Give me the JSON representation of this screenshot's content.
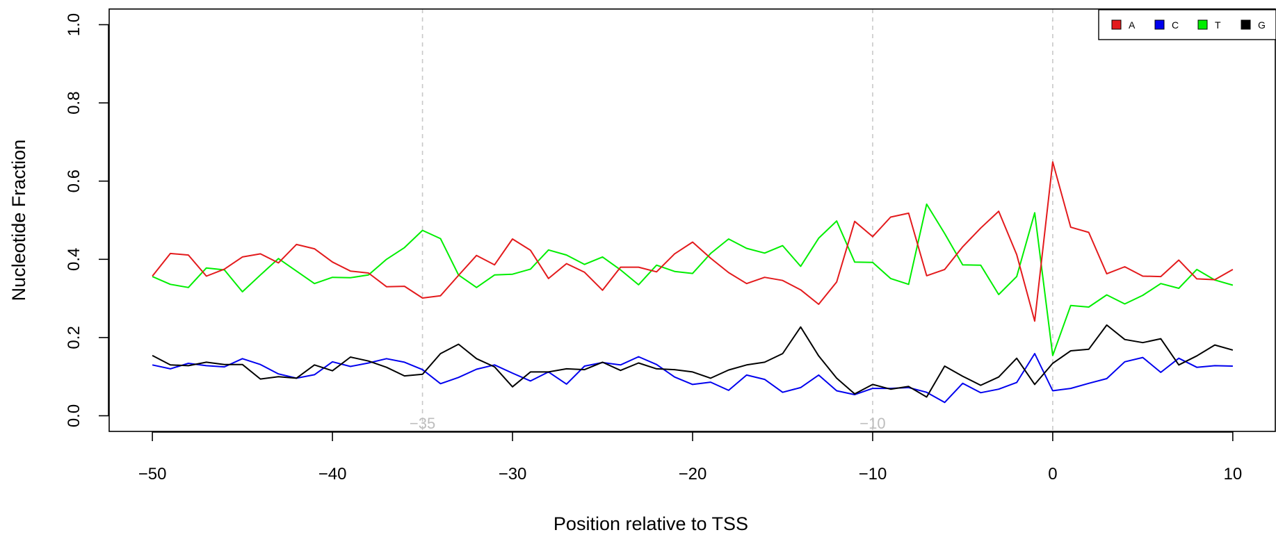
{
  "chart_data": {
    "type": "line",
    "title": "",
    "xlabel": "Position relative to TSS",
    "ylabel": "Nucleotide Fraction",
    "xlim": [
      -52.4,
      12.4
    ],
    "ylim": [
      -0.04,
      1.04
    ],
    "x_ticks": [
      -50,
      -40,
      -30,
      -20,
      -10,
      0,
      10
    ],
    "x_tick_labels": [
      "−50",
      "−40",
      "−30",
      "−20",
      "−10",
      "0",
      "10"
    ],
    "y_ticks": [
      0.0,
      0.2,
      0.4,
      0.6,
      0.8,
      1.0
    ],
    "y_tick_labels": [
      "0.0",
      "0.2",
      "0.4",
      "0.6",
      "0.8",
      "1.0"
    ],
    "reference_lines": [
      {
        "x": -35,
        "label": "−35",
        "color": "#c8c8c8"
      },
      {
        "x": -10,
        "label": "−10",
        "color": "#c8c8c8"
      },
      {
        "x": 0,
        "label": "",
        "color": "#c8c8c8"
      }
    ],
    "legend_position": "top-right",
    "x": [
      -50,
      -49,
      -48,
      -47,
      -46,
      -45,
      -44,
      -43,
      -42,
      -41,
      -40,
      -39,
      -38,
      -37,
      -36,
      -35,
      -34,
      -33,
      -32,
      -31,
      -30,
      -29,
      -28,
      -27,
      -26,
      -25,
      -24,
      -23,
      -22,
      -21,
      -20,
      -19,
      -18,
      -17,
      -16,
      -15,
      -14,
      -13,
      -12,
      -11,
      -10,
      -9,
      -8,
      -7,
      -6,
      -5,
      -4,
      -3,
      -2,
      -1,
      0,
      1,
      2,
      3,
      4,
      5,
      6,
      7,
      8,
      9,
      10
    ],
    "series": [
      {
        "name": "A",
        "color": "#e31a1c",
        "values": [
          0.357,
          0.415,
          0.411,
          0.357,
          0.375,
          0.406,
          0.414,
          0.391,
          0.438,
          0.427,
          0.393,
          0.37,
          0.365,
          0.33,
          0.331,
          0.301,
          0.307,
          0.359,
          0.41,
          0.386,
          0.452,
          0.423,
          0.351,
          0.389,
          0.367,
          0.321,
          0.38,
          0.38,
          0.368,
          0.414,
          0.444,
          0.403,
          0.366,
          0.338,
          0.354,
          0.346,
          0.322,
          0.285,
          0.342,
          0.497,
          0.458,
          0.508,
          0.518,
          0.358,
          0.374,
          0.432,
          0.48,
          0.523,
          0.412,
          0.242,
          0.649,
          0.482,
          0.469,
          0.363,
          0.381,
          0.357,
          0.356,
          0.398,
          0.35,
          0.348,
          0.374
        ]
      },
      {
        "name": "C",
        "color": "#0000ee",
        "values": [
          0.13,
          0.12,
          0.134,
          0.128,
          0.125,
          0.146,
          0.131,
          0.107,
          0.096,
          0.105,
          0.138,
          0.126,
          0.135,
          0.146,
          0.137,
          0.118,
          0.082,
          0.098,
          0.119,
          0.13,
          0.109,
          0.089,
          0.112,
          0.081,
          0.127,
          0.136,
          0.13,
          0.151,
          0.131,
          0.099,
          0.08,
          0.086,
          0.065,
          0.104,
          0.093,
          0.06,
          0.072,
          0.104,
          0.064,
          0.054,
          0.07,
          0.07,
          0.072,
          0.06,
          0.034,
          0.083,
          0.059,
          0.068,
          0.085,
          0.159,
          0.064,
          0.07,
          0.083,
          0.095,
          0.138,
          0.149,
          0.111,
          0.147,
          0.124,
          0.128,
          0.127
        ]
      },
      {
        "name": "T",
        "color": "#00ee00",
        "values": [
          0.356,
          0.336,
          0.328,
          0.378,
          0.373,
          0.317,
          0.36,
          0.402,
          0.37,
          0.338,
          0.354,
          0.353,
          0.36,
          0.4,
          0.43,
          0.474,
          0.453,
          0.36,
          0.328,
          0.36,
          0.362,
          0.375,
          0.424,
          0.411,
          0.387,
          0.406,
          0.373,
          0.335,
          0.385,
          0.369,
          0.364,
          0.415,
          0.452,
          0.428,
          0.416,
          0.435,
          0.382,
          0.454,
          0.498,
          0.393,
          0.392,
          0.351,
          0.336,
          0.541,
          0.466,
          0.386,
          0.385,
          0.31,
          0.356,
          0.519,
          0.154,
          0.282,
          0.278,
          0.309,
          0.286,
          0.308,
          0.338,
          0.326,
          0.374,
          0.347,
          0.334
        ]
      },
      {
        "name": "G",
        "color": "#000000",
        "values": [
          0.154,
          0.13,
          0.128,
          0.137,
          0.131,
          0.131,
          0.094,
          0.1,
          0.096,
          0.13,
          0.115,
          0.15,
          0.14,
          0.124,
          0.102,
          0.106,
          0.159,
          0.183,
          0.146,
          0.125,
          0.074,
          0.112,
          0.112,
          0.12,
          0.118,
          0.137,
          0.116,
          0.135,
          0.12,
          0.118,
          0.112,
          0.096,
          0.117,
          0.13,
          0.137,
          0.159,
          0.227,
          0.153,
          0.096,
          0.056,
          0.08,
          0.068,
          0.075,
          0.048,
          0.127,
          0.101,
          0.078,
          0.099,
          0.147,
          0.08,
          0.134,
          0.166,
          0.17,
          0.232,
          0.195,
          0.187,
          0.197,
          0.13,
          0.153,
          0.181,
          0.168
        ]
      }
    ]
  }
}
